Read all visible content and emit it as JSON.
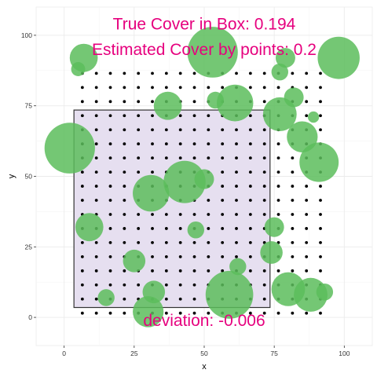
{
  "chart_data": {
    "type": "scatter",
    "title": "",
    "xlabel": "x",
    "ylabel": "y",
    "xlim": [
      -10,
      110
    ],
    "ylim": [
      -10,
      110
    ],
    "x_ticks": [
      0,
      25,
      50,
      75,
      100
    ],
    "y_ticks": [
      0,
      25,
      50,
      75,
      100
    ],
    "grid": true,
    "colors": {
      "circle_fill": "#5cbd5c",
      "box_fill": "#e6dff0",
      "box_stroke": "#333333",
      "point": "#000000",
      "annotation": "#e6007e",
      "grid_major": "#ebebeb",
      "grid_minor": "#f5f5f5"
    },
    "box": {
      "x0": 3.5,
      "x1": 73.5,
      "y0": 3.5,
      "y1": 73.5
    },
    "points": {
      "x_from": 6.5,
      "x_to": 91.5,
      "x_step": 5,
      "y_from": 1.5,
      "y_to": 86.5,
      "y_step": 5
    },
    "circles": [
      {
        "x": 7,
        "y": 92,
        "r": 5
      },
      {
        "x": 5,
        "y": 88,
        "r": 2.5
      },
      {
        "x": 53,
        "y": 94,
        "r": 9
      },
      {
        "x": 79,
        "y": 92,
        "r": 3.5
      },
      {
        "x": 98,
        "y": 92,
        "r": 7.5
      },
      {
        "x": 77,
        "y": 87,
        "r": 3
      },
      {
        "x": 37,
        "y": 75,
        "r": 5
      },
      {
        "x": 54,
        "y": 77,
        "r": 3
      },
      {
        "x": 61,
        "y": 76,
        "r": 6.5
      },
      {
        "x": 82,
        "y": 78,
        "r": 3.5
      },
      {
        "x": 77,
        "y": 72,
        "r": 6
      },
      {
        "x": 89,
        "y": 71,
        "r": 2
      },
      {
        "x": 85,
        "y": 64,
        "r": 5.5
      },
      {
        "x": 2,
        "y": 60,
        "r": 9
      },
      {
        "x": 91,
        "y": 55,
        "r": 7
      },
      {
        "x": 31,
        "y": 44,
        "r": 6.5
      },
      {
        "x": 43,
        "y": 48,
        "r": 7.5
      },
      {
        "x": 50,
        "y": 49,
        "r": 3.5
      },
      {
        "x": 9,
        "y": 32,
        "r": 5
      },
      {
        "x": 47,
        "y": 31,
        "r": 3
      },
      {
        "x": 75,
        "y": 32,
        "r": 3.5
      },
      {
        "x": 25,
        "y": 20,
        "r": 4
      },
      {
        "x": 74,
        "y": 23,
        "r": 4
      },
      {
        "x": 62,
        "y": 18,
        "r": 3
      },
      {
        "x": 80,
        "y": 10,
        "r": 6
      },
      {
        "x": 32,
        "y": 9,
        "r": 4
      },
      {
        "x": 15,
        "y": 7,
        "r": 3
      },
      {
        "x": 59,
        "y": 8,
        "r": 8.5
      },
      {
        "x": 88,
        "y": 8,
        "r": 6
      },
      {
        "x": 93,
        "y": 9,
        "r": 3
      },
      {
        "x": 30,
        "y": 2,
        "r": 5.5
      }
    ],
    "annotations": {
      "true_cover": "True Cover in Box: 0.194",
      "estimated_cover": "Estimated Cover by points: 0.2",
      "deviation": "deviation: -0.006"
    }
  }
}
